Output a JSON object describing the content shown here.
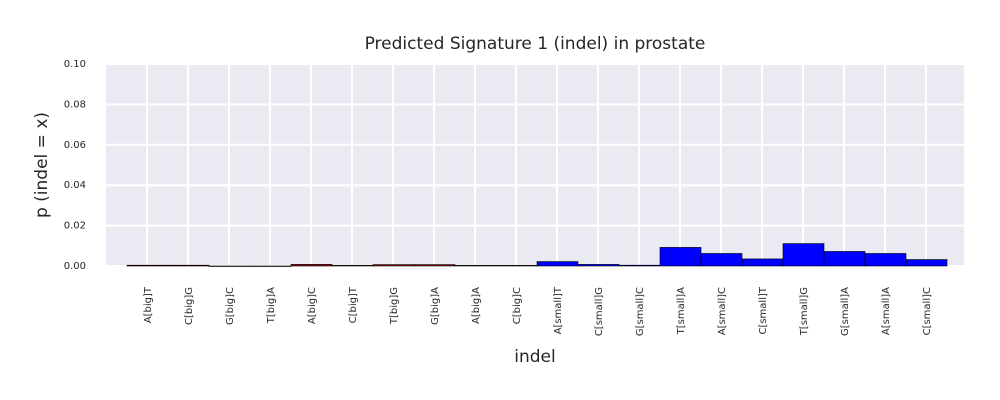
{
  "chart_data": {
    "type": "bar",
    "title": "Predicted Signature 1 (indel) in prostate",
    "xlabel": "indel",
    "ylabel": "p (indel = x)",
    "ylim": [
      0,
      0.1
    ],
    "yticks": [
      "0.00",
      "0.02",
      "0.04",
      "0.06",
      "0.08",
      "0.10"
    ],
    "grid": true,
    "categories": [
      "A[big]T",
      "C[big]G",
      "G[big]C",
      "T[big]A",
      "A[big]C",
      "C[big]T",
      "T[big]G",
      "G[big]A",
      "A[big]A",
      "C[big]C",
      "A[small]T",
      "C[small]G",
      "G[small]C",
      "T[small]A",
      "A[small]C",
      "C[small]T",
      "T[small]G",
      "G[small]A",
      "A[small]A",
      "C[small]C"
    ],
    "values": [
      0.0004,
      0.0004,
      0.0,
      0.0,
      0.0008,
      0.0003,
      0.0007,
      0.0007,
      0.0003,
      0.0003,
      0.0022,
      0.0008,
      0.0004,
      0.0092,
      0.0062,
      0.0035,
      0.0111,
      0.0072,
      0.0062,
      0.0032
    ],
    "colors": [
      "#8b0000",
      "#8b0000",
      "#8b0000",
      "#8b0000",
      "#8b0000",
      "#8b0000",
      "#8b0000",
      "#8b0000",
      "#8b0000",
      "#8b0000",
      "#0000ff",
      "#0000ff",
      "#0000ff",
      "#0000ff",
      "#0000ff",
      "#0000ff",
      "#0000ff",
      "#0000ff",
      "#0000ff",
      "#0000ff"
    ],
    "background": "#eaeaf2",
    "gridcolor": "#ffffff"
  }
}
